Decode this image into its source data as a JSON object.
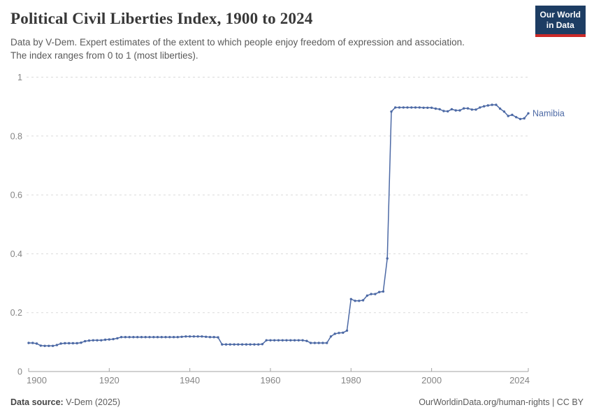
{
  "header": {
    "title": "Political Civil Liberties Index, 1900 to 2024",
    "subtitle_line1": "Data by V-Dem. Expert estimates of the extent to which people enjoy freedom of expression and association.",
    "subtitle_line2": "The index ranges from 0 to 1 (most liberties).",
    "logo": {
      "line1": "Our World",
      "line2": "in Data",
      "bg_color": "#1d3d63",
      "accent_color": "#cc2a28"
    }
  },
  "chart_data": {
    "type": "line",
    "title": "Political Civil Liberties Index, 1900 to 2024",
    "xlabel": "",
    "ylabel": "",
    "xlim": [
      1900,
      2024
    ],
    "ylim": [
      0,
      1
    ],
    "x_ticks": [
      1900,
      1920,
      1940,
      1960,
      1980,
      2000,
      2024
    ],
    "y_ticks": [
      0,
      0.2,
      0.4,
      0.6,
      0.8,
      1
    ],
    "y_tick_labels": [
      "0",
      "0.2",
      "0.4",
      "0.6",
      "0.8",
      "1"
    ],
    "grid": "horizontal-dashed",
    "grid_color": "#dadada",
    "axis_color": "#a3a3a3",
    "tick_label_color": "#858585",
    "legend_position": "end-of-line-label",
    "series": [
      {
        "name": "Namibia",
        "color": "#4c69a5",
        "marker": "dot",
        "x": [
          1900,
          1901,
          1902,
          1903,
          1904,
          1905,
          1906,
          1907,
          1908,
          1909,
          1910,
          1911,
          1912,
          1913,
          1914,
          1915,
          1916,
          1917,
          1918,
          1919,
          1920,
          1921,
          1922,
          1923,
          1924,
          1925,
          1926,
          1927,
          1928,
          1929,
          1930,
          1931,
          1932,
          1933,
          1934,
          1935,
          1936,
          1937,
          1938,
          1939,
          1940,
          1941,
          1942,
          1943,
          1944,
          1945,
          1946,
          1947,
          1948,
          1949,
          1950,
          1951,
          1952,
          1953,
          1954,
          1955,
          1956,
          1957,
          1958,
          1959,
          1960,
          1961,
          1962,
          1963,
          1964,
          1965,
          1966,
          1967,
          1968,
          1969,
          1970,
          1971,
          1972,
          1973,
          1974,
          1975,
          1976,
          1977,
          1978,
          1979,
          1980,
          1981,
          1982,
          1983,
          1984,
          1985,
          1986,
          1987,
          1988,
          1989,
          1990,
          1991,
          1992,
          1993,
          1994,
          1995,
          1996,
          1997,
          1998,
          1999,
          2000,
          2001,
          2002,
          2003,
          2004,
          2005,
          2006,
          2007,
          2008,
          2009,
          2010,
          2011,
          2012,
          2013,
          2014,
          2015,
          2016,
          2017,
          2018,
          2019,
          2020,
          2021,
          2022,
          2023,
          2024
        ],
        "values": [
          0.097,
          0.097,
          0.095,
          0.088,
          0.087,
          0.087,
          0.087,
          0.09,
          0.095,
          0.096,
          0.096,
          0.096,
          0.096,
          0.098,
          0.103,
          0.105,
          0.106,
          0.106,
          0.106,
          0.108,
          0.109,
          0.11,
          0.113,
          0.117,
          0.117,
          0.117,
          0.117,
          0.117,
          0.117,
          0.117,
          0.117,
          0.117,
          0.117,
          0.117,
          0.117,
          0.117,
          0.117,
          0.117,
          0.118,
          0.119,
          0.119,
          0.119,
          0.119,
          0.119,
          0.118,
          0.117,
          0.117,
          0.116,
          0.092,
          0.092,
          0.092,
          0.092,
          0.092,
          0.092,
          0.092,
          0.092,
          0.092,
          0.092,
          0.093,
          0.106,
          0.106,
          0.106,
          0.106,
          0.106,
          0.106,
          0.106,
          0.106,
          0.106,
          0.106,
          0.104,
          0.097,
          0.097,
          0.097,
          0.097,
          0.097,
          0.119,
          0.128,
          0.131,
          0.132,
          0.139,
          0.246,
          0.24,
          0.24,
          0.242,
          0.258,
          0.263,
          0.263,
          0.27,
          0.272,
          0.384,
          0.883,
          0.897,
          0.897,
          0.897,
          0.897,
          0.897,
          0.897,
          0.897,
          0.896,
          0.896,
          0.896,
          0.893,
          0.891,
          0.885,
          0.884,
          0.891,
          0.887,
          0.887,
          0.894,
          0.894,
          0.89,
          0.89,
          0.897,
          0.901,
          0.904,
          0.906,
          0.906,
          0.893,
          0.883,
          0.868,
          0.872,
          0.864,
          0.858,
          0.86,
          0.877
        ]
      }
    ]
  },
  "footer": {
    "source_label": "Data source:",
    "source_value": "V-Dem (2025)",
    "rights": "OurWorldinData.org/human-rights | CC BY"
  }
}
